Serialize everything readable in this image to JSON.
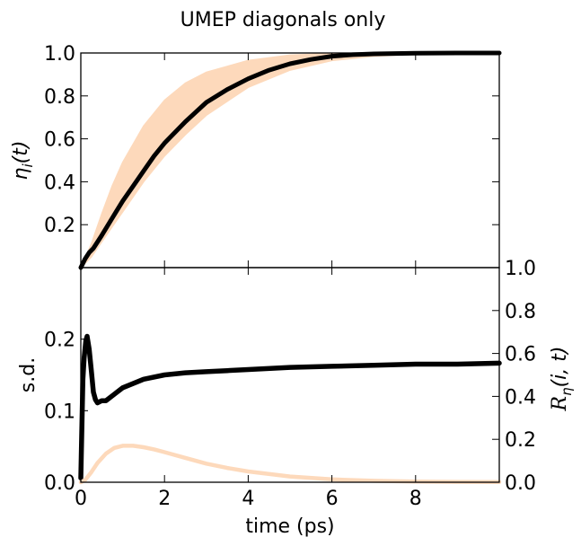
{
  "figure": {
    "title": "UMEP diagonals only"
  },
  "chart_data": [
    {
      "type": "line",
      "panel": "top",
      "title": "UMEP diagonals only",
      "xlabel": "",
      "ylabel": "η_i(t)",
      "ylabel_display": [
        "η",
        "i",
        "(t)"
      ],
      "xlim": [
        0,
        10
      ],
      "ylim": [
        0,
        1.0
      ],
      "x_ticks": [
        0,
        2,
        4,
        6,
        8
      ],
      "y_ticks": [
        0.2,
        0.4,
        0.6,
        0.8,
        1.0
      ],
      "y_tick_labels": [
        "0.2",
        "0.4",
        "0.6",
        "0.8",
        "1.0"
      ],
      "grid": false,
      "band": {
        "color": "#fdd9bb",
        "x": [
          0,
          0.25,
          0.5,
          0.75,
          1,
          1.5,
          2,
          2.5,
          3,
          4,
          5,
          6,
          7,
          8,
          10
        ],
        "lower": [
          0,
          0.05,
          0.12,
          0.19,
          0.26,
          0.4,
          0.52,
          0.62,
          0.71,
          0.84,
          0.92,
          0.965,
          0.985,
          0.995,
          1.0
        ],
        "upper": [
          0,
          0.11,
          0.25,
          0.38,
          0.49,
          0.66,
          0.78,
          0.86,
          0.91,
          0.965,
          0.99,
          0.998,
          1.0,
          1.0,
          1.0
        ]
      },
      "series": [
        {
          "color": "#000000",
          "x": [
            0,
            0.1,
            0.2,
            0.3,
            0.5,
            0.75,
            1,
            1.25,
            1.5,
            1.75,
            2,
            2.5,
            3,
            3.5,
            4,
            4.5,
            5,
            5.5,
            6,
            6.5,
            7,
            8,
            9,
            10
          ],
          "values": [
            0,
            0.04,
            0.07,
            0.09,
            0.15,
            0.23,
            0.31,
            0.38,
            0.45,
            0.52,
            0.58,
            0.68,
            0.77,
            0.83,
            0.88,
            0.92,
            0.95,
            0.97,
            0.985,
            0.992,
            0.996,
            0.999,
            1.0,
            1.0
          ]
        }
      ]
    },
    {
      "type": "line",
      "panel": "bottom",
      "xlabel": "time (ps)",
      "ylabel": "s.d.",
      "ylabel_right": "R_η(i,t)",
      "ylabel_right_display": [
        "R",
        "η",
        "(i, t)"
      ],
      "xlim": [
        0,
        10
      ],
      "ylim": [
        0,
        0.3
      ],
      "ylim_right": [
        0,
        1.0
      ],
      "x_ticks": [
        0,
        2,
        4,
        6,
        8
      ],
      "x_tick_labels": [
        "0",
        "2",
        "4",
        "6",
        "8"
      ],
      "y_ticks": [
        0.0,
        0.1,
        0.2
      ],
      "y_tick_labels": [
        "0.0",
        "0.1",
        "0.2"
      ],
      "y_ticks_right": [
        0.0,
        0.2,
        0.4,
        0.6,
        0.8,
        1.0
      ],
      "y_tick_labels_right": [
        "0.0",
        "0.2",
        "0.4",
        "0.6",
        "0.8",
        "1.0"
      ],
      "grid": false,
      "series": [
        {
          "color": "#000000",
          "axis": "right",
          "x": [
            0,
            0.05,
            0.08,
            0.12,
            0.15,
            0.2,
            0.25,
            0.3,
            0.35,
            0.4,
            0.5,
            0.6,
            0.8,
            1,
            1.25,
            1.5,
            2,
            2.5,
            3,
            3.5,
            4,
            5,
            6,
            7,
            8,
            9,
            10
          ],
          "values": [
            0.02,
            0.48,
            0.58,
            0.66,
            0.68,
            0.62,
            0.52,
            0.42,
            0.385,
            0.37,
            0.38,
            0.38,
            0.41,
            0.44,
            0.46,
            0.48,
            0.5,
            0.51,
            0.515,
            0.52,
            0.525,
            0.535,
            0.54,
            0.545,
            0.55,
            0.55,
            0.555
          ]
        },
        {
          "color": "#fdd9bb",
          "axis": "left",
          "x": [
            0,
            0.1,
            0.25,
            0.4,
            0.6,
            0.8,
            1,
            1.25,
            1.5,
            1.75,
            2,
            2.5,
            3,
            3.5,
            4,
            5,
            6,
            7,
            8,
            9,
            10
          ],
          "values": [
            0,
            0.003,
            0.014,
            0.027,
            0.04,
            0.048,
            0.051,
            0.051,
            0.049,
            0.046,
            0.042,
            0.034,
            0.026,
            0.02,
            0.015,
            0.008,
            0.004,
            0.002,
            0.001,
            0.0005,
            0.0003
          ]
        }
      ]
    }
  ]
}
